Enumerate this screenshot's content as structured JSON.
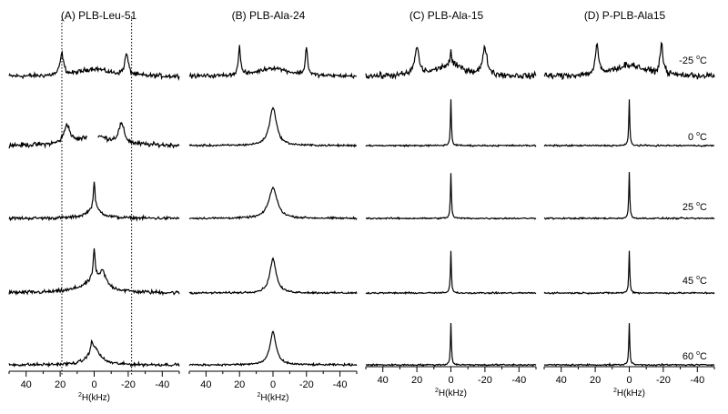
{
  "chart_data": {
    "type": "line",
    "description": "2H solid-state NMR spectra, stacked by temperature",
    "x_axis": {
      "label_sup": "2",
      "label_main": "H(kHz)",
      "ticks": [
        40,
        20,
        0,
        -20,
        -40
      ],
      "xlim": [
        50,
        -50
      ],
      "reversed": true
    },
    "temperatures": [
      {
        "sup_prefix": "-25",
        "sup": "o",
        "unit": "C"
      },
      {
        "sup_prefix": "0",
        "sup": "o",
        "unit": "C"
      },
      {
        "sup_prefix": "25",
        "sup": "o",
        "unit": "C"
      },
      {
        "sup_prefix": "45",
        "sup": "o",
        "unit": "C"
      },
      {
        "sup_prefix": "60",
        "sup": "o",
        "unit": "C"
      }
    ],
    "reference_lines_khz": [
      19,
      -22
    ],
    "panels": [
      {
        "title": "(A) PLB-Leu-51",
        "spectra": [
          {
            "peaks": [
              {
                "x": 19,
                "h": 0.55,
                "w": 2.5
              },
              {
                "x": -19,
                "h": 0.55,
                "w": 2.5
              },
              {
                "x": 0,
                "h": 0.2,
                "w": 20
              }
            ],
            "noise": 0.06
          },
          {
            "peaks": [
              {
                "x": 16,
                "h": 0.5,
                "w": 4
              },
              {
                "x": -16,
                "h": 0.5,
                "w": 4
              },
              {
                "x": 0,
                "h": 0.25,
                "w": 20
              }
            ],
            "noise": 0.06,
            "gap": [
              -2,
              4
            ]
          },
          {
            "peaks": [
              {
                "x": 0,
                "h": 0.7,
                "w": 1.2
              },
              {
                "x": 0,
                "h": 0.25,
                "w": 10
              }
            ],
            "noise": 0.04
          },
          {
            "peaks": [
              {
                "x": 0,
                "h": 0.8,
                "w": 1.5
              },
              {
                "x": -5,
                "h": 0.35,
                "w": 4
              },
              {
                "x": 0,
                "h": 0.3,
                "w": 18
              }
            ],
            "noise": 0.05
          },
          {
            "peaks": [
              {
                "x": 0,
                "h": 0.45,
                "w": 8
              },
              {
                "x": 1.5,
                "h": 0.2,
                "w": 1.5
              }
            ],
            "noise": 0.04
          }
        ]
      },
      {
        "title": "(B) PLB-Ala-24",
        "spectra": [
          {
            "peaks": [
              {
                "x": 20,
                "h": 0.75,
                "w": 1.5
              },
              {
                "x": -20,
                "h": 0.75,
                "w": 1.5
              },
              {
                "x": 0,
                "h": 0.22,
                "w": 22
              }
            ],
            "noise": 0.05
          },
          {
            "peaks": [
              {
                "x": 0,
                "h": 1.0,
                "w": 5
              }
            ],
            "noise": 0.025
          },
          {
            "peaks": [
              {
                "x": 0,
                "h": 0.8,
                "w": 6
              }
            ],
            "noise": 0.025
          },
          {
            "peaks": [
              {
                "x": 0,
                "h": 0.9,
                "w": 4.5
              }
            ],
            "noise": 0.025
          },
          {
            "peaks": [
              {
                "x": 0,
                "h": 0.85,
                "w": 4.5
              }
            ],
            "noise": 0.025
          }
        ]
      },
      {
        "title": "(C) PLB-Ala-15",
        "spectra": [
          {
            "peaks": [
              {
                "x": 20,
                "h": 0.7,
                "w": 3
              },
              {
                "x": -20,
                "h": 0.7,
                "w": 3
              },
              {
                "x": 0,
                "h": 0.35,
                "w": 1
              },
              {
                "x": 0,
                "h": 0.3,
                "w": 20
              }
            ],
            "noise": 0.08
          },
          {
            "peaks": [
              {
                "x": 0,
                "h": 1.2,
                "w": 0.7
              }
            ],
            "noise": 0.02
          },
          {
            "peaks": [
              {
                "x": 0,
                "h": 1.2,
                "w": 0.7
              }
            ],
            "noise": 0.02
          },
          {
            "peaks": [
              {
                "x": 0,
                "h": 1.1,
                "w": 0.7
              }
            ],
            "noise": 0.02
          },
          {
            "peaks": [
              {
                "x": 0,
                "h": 1.1,
                "w": 0.7
              }
            ],
            "noise": 0.02
          }
        ]
      },
      {
        "title": "(D) P-PLB-Ala15",
        "spectra": [
          {
            "peaks": [
              {
                "x": 19,
                "h": 0.8,
                "w": 2
              },
              {
                "x": -19,
                "h": 0.8,
                "w": 2
              },
              {
                "x": 0,
                "h": 0.3,
                "w": 22
              }
            ],
            "noise": 0.08
          },
          {
            "peaks": [
              {
                "x": 0,
                "h": 1.2,
                "w": 0.7
              }
            ],
            "noise": 0.02
          },
          {
            "peaks": [
              {
                "x": 0,
                "h": 1.2,
                "w": 0.7
              }
            ],
            "noise": 0.02
          },
          {
            "peaks": [
              {
                "x": 0,
                "h": 1.1,
                "w": 0.7
              }
            ],
            "noise": 0.02
          },
          {
            "peaks": [
              {
                "x": 0,
                "h": 1.1,
                "w": 0.7
              }
            ],
            "noise": 0.02
          }
        ]
      }
    ]
  }
}
